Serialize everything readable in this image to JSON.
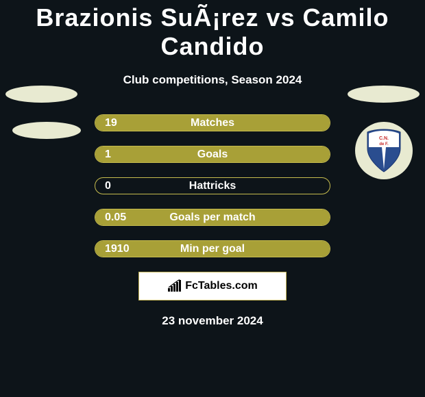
{
  "title": "Brazionis SuÃ¡rez vs Camilo Candido",
  "subtitle": "Club competitions, Season 2024",
  "date": "23 november 2024",
  "brand": "FcTables.com",
  "colors": {
    "background": "#0d1419",
    "bar_fill": "#a8a037",
    "bar_border": "#c7bd4e",
    "oval": "#e8ead1",
    "shield_blue": "#2a4d8f",
    "shield_white": "#ffffff",
    "shield_red": "#c62828"
  },
  "stats": [
    {
      "value": "19",
      "label": "Matches",
      "fill_pct": 100
    },
    {
      "value": "1",
      "label": "Goals",
      "fill_pct": 100
    },
    {
      "value": "0",
      "label": "Hattricks",
      "fill_pct": 0
    },
    {
      "value": "0.05",
      "label": "Goals per match",
      "fill_pct": 100
    },
    {
      "value": "1910",
      "label": "Min per goal",
      "fill_pct": 100
    }
  ],
  "badge": {
    "initials": "C.N. de F."
  }
}
